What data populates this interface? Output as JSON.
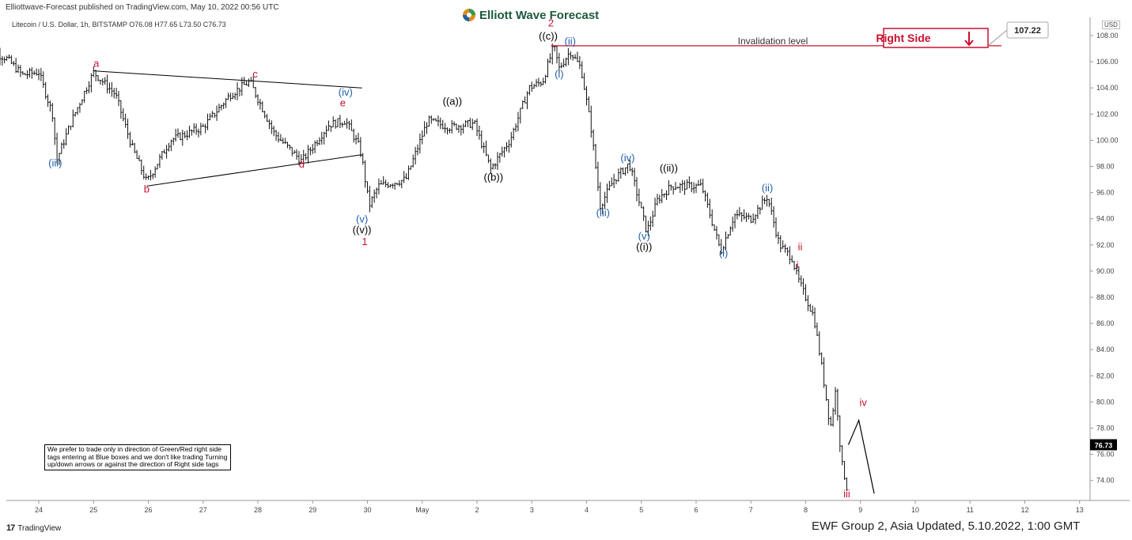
{
  "header": {
    "published": "Elliottwave-Forecast published on TradingView.com, May 10, 2022 00:56 UTC",
    "symbol_line": "Litecoin / U.S. Dollar, 1h, BITSTAMP  O76.08  H77.65  L73.50  C76.73",
    "logo": "Elliott Wave Forecast",
    "currency": "USD"
  },
  "note": "We prefer to trade only in direction of Green/Red right side tags entering at Blue boxes and we don't like trading Turning up/down arrows or against the direction of Right side tags",
  "footer": {
    "brand": "TradingView",
    "update": "EWF Group 2, Asia Updated, 5.10.2022, 1:00 GMT"
  },
  "colors": {
    "blue": "#1f5fa8",
    "red": "#c8102e",
    "black": "#000000",
    "candle": "#111111"
  },
  "chart_data": {
    "type": "line",
    "instrument": "Litecoin / U.S. Dollar",
    "timeframe": "1h",
    "ylim": [
      72.5,
      108.5
    ],
    "y_ticks": [
      "108.00",
      "106.00",
      "104.00",
      "102.00",
      "100.00",
      "98.00",
      "96.00",
      "94.00",
      "92.00",
      "90.00",
      "88.00",
      "86.00",
      "84.00",
      "82.00",
      "80.00",
      "78.00",
      "76.00",
      "74.00"
    ],
    "x_ticks": [
      "24",
      "25",
      "26",
      "27",
      "28",
      "29",
      "30",
      "May",
      "2",
      "3",
      "4",
      "5",
      "6",
      "7",
      "8",
      "9",
      "10",
      "11",
      "12",
      "13"
    ],
    "last_price": "76.73",
    "invalidation": {
      "label": "Invalidation level",
      "value": "107.22",
      "tag": "Right Side"
    },
    "price_path": [
      {
        "x": 0.0,
        "y": 107.0
      },
      {
        "x": 0.4,
        "y": 106.3
      },
      {
        "x": 0.7,
        "y": 105.0
      },
      {
        "x": 1.0,
        "y": 105.2
      },
      {
        "x": 1.25,
        "y": 102.0
      },
      {
        "x": 1.33,
        "y": 98.5
      },
      {
        "x": 1.6,
        "y": 101.5
      },
      {
        "x": 2.0,
        "y": 105.2
      },
      {
        "x": 2.4,
        "y": 103.5
      },
      {
        "x": 2.7,
        "y": 99.5
      },
      {
        "x": 2.97,
        "y": 96.8
      },
      {
        "x": 3.4,
        "y": 100.0
      },
      {
        "x": 4.0,
        "y": 101.0
      },
      {
        "x": 4.5,
        "y": 103.5
      },
      {
        "x": 4.85,
        "y": 104.5
      },
      {
        "x": 5.3,
        "y": 100.5
      },
      {
        "x": 5.8,
        "y": 98.4
      },
      {
        "x": 6.3,
        "y": 101.2
      },
      {
        "x": 6.6,
        "y": 101.5
      },
      {
        "x": 6.85,
        "y": 99.5
      },
      {
        "x": 6.9,
        "y": 98.6
      },
      {
        "x": 7.03,
        "y": 95.0
      },
      {
        "x": 7.2,
        "y": 96.5
      },
      {
        "x": 7.7,
        "y": 97.0
      },
      {
        "x": 8.1,
        "y": 101.5
      },
      {
        "x": 8.5,
        "y": 101.0
      },
      {
        "x": 8.95,
        "y": 101.3
      },
      {
        "x": 9.25,
        "y": 97.8
      },
      {
        "x": 9.6,
        "y": 100.0
      },
      {
        "x": 9.95,
        "y": 104.0
      },
      {
        "x": 10.2,
        "y": 104.5
      },
      {
        "x": 10.4,
        "y": 107.2
      },
      {
        "x": 10.5,
        "y": 105.5
      },
      {
        "x": 10.7,
        "y": 106.8
      },
      {
        "x": 10.9,
        "y": 105.5
      },
      {
        "x": 11.08,
        "y": 101.0
      },
      {
        "x": 11.25,
        "y": 95.0
      },
      {
        "x": 11.5,
        "y": 97.0
      },
      {
        "x": 11.78,
        "y": 98.2
      },
      {
        "x": 12.1,
        "y": 93.0
      },
      {
        "x": 12.3,
        "y": 95.5
      },
      {
        "x": 12.55,
        "y": 96.5
      },
      {
        "x": 12.8,
        "y": 96.5
      },
      {
        "x": 13.1,
        "y": 96.5
      },
      {
        "x": 13.45,
        "y": 91.5
      },
      {
        "x": 13.7,
        "y": 94.3
      },
      {
        "x": 14.0,
        "y": 94.0
      },
      {
        "x": 14.3,
        "y": 95.7
      },
      {
        "x": 14.52,
        "y": 92.0
      },
      {
        "x": 14.75,
        "y": 91.0
      },
      {
        "x": 14.85,
        "y": 89.5
      },
      {
        "x": 15.0,
        "y": 88.0
      },
      {
        "x": 15.15,
        "y": 86.5
      },
      {
        "x": 15.3,
        "y": 82.5
      },
      {
        "x": 15.45,
        "y": 78.0
      },
      {
        "x": 15.55,
        "y": 81.0
      },
      {
        "x": 15.65,
        "y": 75.5
      },
      {
        "x": 15.75,
        "y": 73.5
      },
      {
        "x": 15.78,
        "y": 76.73
      }
    ],
    "projection": [
      {
        "x": 15.78,
        "y": 76.73
      },
      {
        "x": 15.97,
        "y": 78.6
      },
      {
        "x": 16.25,
        "y": 73.0
      }
    ],
    "trendlines": [
      {
        "from": {
          "x": 2.0,
          "y": 105.3
        },
        "to": {
          "x": 6.9,
          "y": 104.0
        }
      },
      {
        "from": {
          "x": 2.97,
          "y": 96.5
        },
        "to": {
          "x": 6.9,
          "y": 98.9
        }
      }
    ],
    "annotations": [
      {
        "text": "(iii)",
        "x": 1.3,
        "y": 98.0,
        "color": "blue"
      },
      {
        "text": "a",
        "x": 2.05,
        "y": 105.6,
        "color": "red"
      },
      {
        "text": "b",
        "x": 2.97,
        "y": 96.0,
        "color": "red"
      },
      {
        "text": "c",
        "x": 4.95,
        "y": 104.8,
        "color": "red"
      },
      {
        "text": "d",
        "x": 5.8,
        "y": 97.9,
        "color": "red"
      },
      {
        "text": "(iv)",
        "x": 6.6,
        "y": 103.4,
        "color": "blue"
      },
      {
        "text": "e",
        "x": 6.55,
        "y": 102.6,
        "color": "red"
      },
      {
        "text": "(v)",
        "x": 6.9,
        "y": 93.7,
        "color": "blue"
      },
      {
        "text": "((v))",
        "x": 6.9,
        "y": 92.9,
        "color": "black"
      },
      {
        "text": "1",
        "x": 6.95,
        "y": 92.0,
        "color": "red"
      },
      {
        "text": "((a))",
        "x": 8.55,
        "y": 102.7,
        "color": "black"
      },
      {
        "text": "((b))",
        "x": 9.3,
        "y": 96.9,
        "color": "black"
      },
      {
        "text": "2",
        "x": 10.35,
        "y": 108.7,
        "color": "red"
      },
      {
        "text": "((c))",
        "x": 10.3,
        "y": 107.7,
        "color": "black"
      },
      {
        "text": "(ii)",
        "x": 10.7,
        "y": 107.3,
        "color": "blue"
      },
      {
        "text": "(i)",
        "x": 10.5,
        "y": 104.8,
        "color": "blue"
      },
      {
        "text": "(iii)",
        "x": 11.3,
        "y": 94.2,
        "color": "blue"
      },
      {
        "text": "(iv)",
        "x": 11.75,
        "y": 98.4,
        "color": "blue"
      },
      {
        "text": "((ii))",
        "x": 12.5,
        "y": 97.6,
        "color": "black"
      },
      {
        "text": "(v)",
        "x": 12.05,
        "y": 92.4,
        "color": "blue"
      },
      {
        "text": "((i))",
        "x": 12.05,
        "y": 91.6,
        "color": "black"
      },
      {
        "text": "(ii)",
        "x": 14.3,
        "y": 96.1,
        "color": "blue"
      },
      {
        "text": "(i)",
        "x": 13.5,
        "y": 91.1,
        "color": "blue"
      },
      {
        "text": "ii",
        "x": 14.9,
        "y": 91.6,
        "color": "red"
      },
      {
        "text": "i",
        "x": 14.85,
        "y": 90.2,
        "color": "red"
      },
      {
        "text": "iv",
        "x": 16.05,
        "y": 79.7,
        "color": "red"
      },
      {
        "text": "iii",
        "x": 15.75,
        "y": 72.7,
        "color": "red"
      }
    ]
  }
}
